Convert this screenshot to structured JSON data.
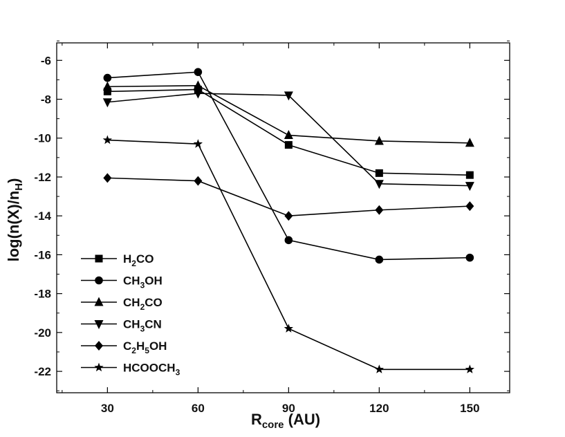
{
  "chart_data": {
    "type": "line",
    "title": "",
    "x": [
      30,
      60,
      90,
      120,
      150
    ],
    "x_ticks": [
      "30",
      "60",
      "90",
      "120",
      "150"
    ],
    "y_ticks": [
      "-6",
      "-8",
      "-10",
      "-12",
      "-14",
      "-16",
      "-18",
      "-20",
      "-22"
    ],
    "xlim": [
      13.2,
      163.2
    ],
    "ylim": [
      -23.1,
      -5.1
    ],
    "xlabel": {
      "main": "R",
      "sub": "core",
      "rest": " (AU)"
    },
    "ylabel": {
      "pre": "log(n(X)/n",
      "sub": "H",
      "post": ")"
    },
    "legend_position": "lower-left",
    "colors": {
      "line": "#000000",
      "frame": "#000000"
    },
    "series": [
      {
        "name": "H2CO",
        "label": [
          {
            "t": "H"
          },
          {
            "t": "2",
            "sub": true
          },
          {
            "t": "CO"
          }
        ],
        "marker": "square",
        "values": [
          -7.6,
          -7.5,
          -10.35,
          -11.8,
          -11.9
        ]
      },
      {
        "name": "CH3OH",
        "label": [
          {
            "t": "CH"
          },
          {
            "t": "3",
            "sub": true
          },
          {
            "t": "OH"
          }
        ],
        "marker": "circle",
        "values": [
          -6.9,
          -6.6,
          -15.25,
          -16.25,
          -16.15
        ]
      },
      {
        "name": "CH2CO",
        "label": [
          {
            "t": "CH"
          },
          {
            "t": "2",
            "sub": true
          },
          {
            "t": "CO"
          }
        ],
        "marker": "triangle-up",
        "values": [
          -7.35,
          -7.3,
          -9.85,
          -10.15,
          -10.25
        ]
      },
      {
        "name": "CH3CN",
        "label": [
          {
            "t": "CH"
          },
          {
            "t": "3",
            "sub": true
          },
          {
            "t": "CN"
          }
        ],
        "marker": "triangle-down",
        "values": [
          -8.15,
          -7.7,
          -7.8,
          -12.35,
          -12.45
        ]
      },
      {
        "name": "C2H5OH",
        "label": [
          {
            "t": "C"
          },
          {
            "t": "2",
            "sub": true
          },
          {
            "t": "H"
          },
          {
            "t": "5",
            "sub": true
          },
          {
            "t": "OH"
          }
        ],
        "marker": "diamond",
        "values": [
          -12.05,
          -12.2,
          -14.0,
          -13.7,
          -13.5
        ]
      },
      {
        "name": "HCOOCH3",
        "label": [
          {
            "t": "HCOOCH"
          },
          {
            "t": "3",
            "sub": true
          }
        ],
        "marker": "star",
        "values": [
          -10.1,
          -10.3,
          -19.8,
          -21.9,
          -21.9
        ]
      }
    ]
  }
}
